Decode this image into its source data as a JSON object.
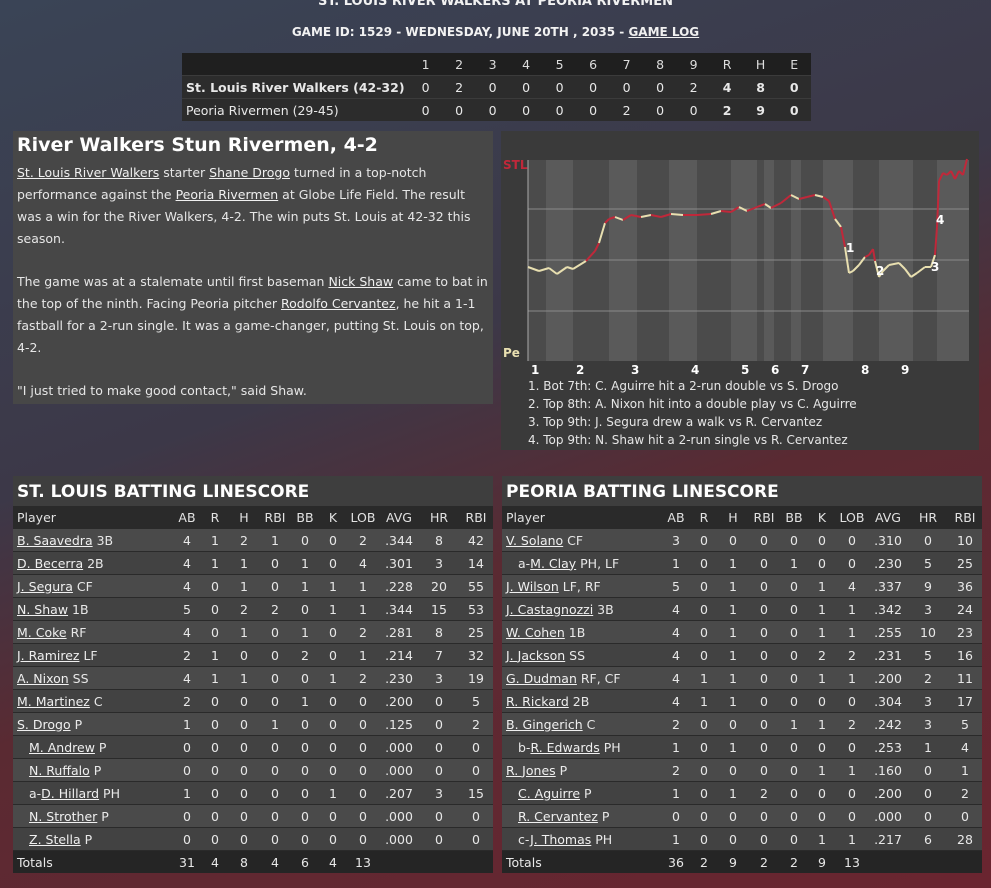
{
  "header": {
    "title": "ST. LOUIS RIVER WALKERS AT PEORIA RIVERMEN",
    "subtitle": "GAME ID: 1529 - WEDNESDAY, JUNE 20TH , 2035 - ",
    "game_log_link": "GAME LOG"
  },
  "linescore": {
    "headers": [
      "1",
      "2",
      "3",
      "4",
      "5",
      "6",
      "7",
      "8",
      "9",
      "R",
      "H",
      "E"
    ],
    "teams": [
      {
        "name": "St. Louis River Walkers (42-32)",
        "innings": [
          "0",
          "2",
          "0",
          "0",
          "0",
          "0",
          "0",
          "0",
          "2"
        ],
        "r": "4",
        "h": "8",
        "e": "0"
      },
      {
        "name": "Peoria Rivermen (29-45)",
        "innings": [
          "0",
          "0",
          "0",
          "0",
          "0",
          "0",
          "2",
          "0",
          "0"
        ],
        "r": "2",
        "h": "9",
        "e": "0"
      }
    ]
  },
  "story": {
    "headline": "River Walkers Stun Rivermen, 4-2",
    "p1": {
      "a_team": "St. Louis River Walkers",
      "a_txt1": " starter ",
      "a_player": "Shane Drogo",
      "a_txt2": " turned in a top-notch performance against the ",
      "a_opp": "Peoria Rivermen",
      "a_txt3": " at Globe Life Field. The result was a win for the River Walkers, 4-2. The win puts St. Louis at 42-32 this season."
    },
    "p2": {
      "txt1": "The game was at a stalemate until first baseman ",
      "player": "Nick Shaw",
      "txt2": " came to bat in the top of the ninth. Facing Peoria pitcher ",
      "pitcher": "Rodolfo Cervantez",
      "txt3": ", he hit a 1-1 fastball for a 2-run single. It was a game-changer, putting St. Louis on top, 4-2."
    },
    "p3": "\"I just tried to make good contact,\" said Shaw."
  },
  "win_probability": {
    "top_label": "STL",
    "bottom_label": "Pe",
    "inning_labels": [
      "1",
      "2",
      "3",
      "4",
      "5",
      "6",
      "7",
      "8",
      "9"
    ],
    "marker_labels": [
      "1",
      "2",
      "3",
      "4"
    ],
    "notes": [
      "1. Bot 7th: C. Aguirre hit a 2-run double vs S. Drogo",
      "2. Top 8th: A. Nixon hit into a double play vs C. Aguirre",
      "3. Top 9th: J. Segura drew a walk vs R. Cervantez",
      "4. Top 9th: N. Shaw hit a 2-run single vs R. Cervantez"
    ],
    "colors": {
      "away": "#c0283a",
      "home": "#e8dfb0"
    }
  },
  "batting_headers": [
    "Player",
    "AB",
    "R",
    "H",
    "RBI",
    "BB",
    "K",
    "LOB",
    "AVG",
    "HR",
    "RBI"
  ],
  "stl": {
    "title": "ST. LOUIS BATTING LINESCORE",
    "rows": [
      {
        "pre": "",
        "name": "B. Saavedra",
        "pos": " 3B",
        "sub": false,
        "stats": [
          "4",
          "1",
          "2",
          "1",
          "0",
          "0",
          "2",
          ".344",
          "8",
          "42"
        ]
      },
      {
        "pre": "",
        "name": "D. Becerra",
        "pos": " 2B",
        "sub": false,
        "stats": [
          "4",
          "1",
          "1",
          "0",
          "1",
          "0",
          "4",
          ".301",
          "3",
          "14"
        ]
      },
      {
        "pre": "",
        "name": "J. Segura",
        "pos": " CF",
        "sub": false,
        "stats": [
          "4",
          "0",
          "1",
          "0",
          "1",
          "1",
          "1",
          ".228",
          "20",
          "55"
        ]
      },
      {
        "pre": "",
        "name": "N. Shaw",
        "pos": " 1B",
        "sub": false,
        "stats": [
          "5",
          "0",
          "2",
          "2",
          "0",
          "1",
          "1",
          ".344",
          "15",
          "53"
        ]
      },
      {
        "pre": "",
        "name": "M. Coke",
        "pos": " RF",
        "sub": false,
        "stats": [
          "4",
          "0",
          "1",
          "0",
          "1",
          "0",
          "2",
          ".281",
          "8",
          "25"
        ]
      },
      {
        "pre": "",
        "name": "J. Ramirez",
        "pos": " LF",
        "sub": false,
        "stats": [
          "2",
          "1",
          "0",
          "0",
          "2",
          "0",
          "1",
          ".214",
          "7",
          "32"
        ]
      },
      {
        "pre": "",
        "name": "A. Nixon",
        "pos": " SS",
        "sub": false,
        "stats": [
          "4",
          "1",
          "1",
          "0",
          "0",
          "1",
          "2",
          ".230",
          "3",
          "19"
        ]
      },
      {
        "pre": "",
        "name": "M. Martinez",
        "pos": " C",
        "sub": false,
        "stats": [
          "2",
          "0",
          "0",
          "0",
          "1",
          "0",
          "0",
          ".200",
          "0",
          "5"
        ]
      },
      {
        "pre": "",
        "name": "S. Drogo",
        "pos": " P",
        "sub": false,
        "stats": [
          "1",
          "0",
          "0",
          "1",
          "0",
          "0",
          "0",
          ".125",
          "0",
          "2"
        ]
      },
      {
        "pre": "",
        "name": "M. Andrew",
        "pos": " P",
        "sub": true,
        "stats": [
          "0",
          "0",
          "0",
          "0",
          "0",
          "0",
          "0",
          ".000",
          "0",
          "0"
        ]
      },
      {
        "pre": "",
        "name": "N. Ruffalo",
        "pos": " P",
        "sub": true,
        "stats": [
          "0",
          "0",
          "0",
          "0",
          "0",
          "0",
          "0",
          ".000",
          "0",
          "0"
        ]
      },
      {
        "pre": "a-",
        "name": "D. Hillard",
        "pos": " PH",
        "sub": true,
        "stats": [
          "1",
          "0",
          "0",
          "0",
          "0",
          "1",
          "0",
          ".207",
          "3",
          "15"
        ]
      },
      {
        "pre": "",
        "name": "N. Strother",
        "pos": " P",
        "sub": true,
        "stats": [
          "0",
          "0",
          "0",
          "0",
          "0",
          "0",
          "0",
          ".000",
          "0",
          "0"
        ]
      },
      {
        "pre": "",
        "name": "Z. Stella",
        "pos": " P",
        "sub": true,
        "stats": [
          "0",
          "0",
          "0",
          "0",
          "0",
          "0",
          "0",
          ".000",
          "0",
          "0"
        ]
      }
    ],
    "totals": {
      "label": "Totals",
      "stats": [
        "31",
        "4",
        "8",
        "4",
        "6",
        "4",
        "13",
        "",
        "",
        ""
      ]
    }
  },
  "peo": {
    "title": "PEORIA BATTING LINESCORE",
    "rows": [
      {
        "pre": "",
        "name": "V. Solano",
        "pos": " CF",
        "sub": false,
        "stats": [
          "3",
          "0",
          "0",
          "0",
          "0",
          "0",
          "0",
          ".310",
          "0",
          "10"
        ]
      },
      {
        "pre": "a-",
        "name": "M. Clay",
        "pos": " PH, LF",
        "sub": true,
        "stats": [
          "1",
          "0",
          "1",
          "0",
          "1",
          "0",
          "0",
          ".230",
          "5",
          "25"
        ]
      },
      {
        "pre": "",
        "name": "J. Wilson",
        "pos": " LF, RF",
        "sub": false,
        "stats": [
          "5",
          "0",
          "1",
          "0",
          "0",
          "1",
          "4",
          ".337",
          "9",
          "36"
        ]
      },
      {
        "pre": "",
        "name": "J. Castagnozzi",
        "pos": " 3B",
        "sub": false,
        "stats": [
          "4",
          "0",
          "1",
          "0",
          "0",
          "1",
          "1",
          ".342",
          "3",
          "24"
        ]
      },
      {
        "pre": "",
        "name": "W. Cohen",
        "pos": " 1B",
        "sub": false,
        "stats": [
          "4",
          "0",
          "1",
          "0",
          "0",
          "1",
          "1",
          ".255",
          "10",
          "23"
        ]
      },
      {
        "pre": "",
        "name": "J. Jackson",
        "pos": " SS",
        "sub": false,
        "stats": [
          "4",
          "0",
          "1",
          "0",
          "0",
          "2",
          "2",
          ".231",
          "5",
          "16"
        ]
      },
      {
        "pre": "",
        "name": "G. Dudman",
        "pos": " RF, CF",
        "sub": false,
        "stats": [
          "4",
          "1",
          "1",
          "0",
          "0",
          "1",
          "1",
          ".200",
          "2",
          "11"
        ]
      },
      {
        "pre": "",
        "name": "R. Rickard",
        "pos": " 2B",
        "sub": false,
        "stats": [
          "4",
          "1",
          "1",
          "0",
          "0",
          "0",
          "0",
          ".304",
          "3",
          "17"
        ]
      },
      {
        "pre": "",
        "name": "B. Gingerich",
        "pos": " C",
        "sub": false,
        "stats": [
          "2",
          "0",
          "0",
          "0",
          "1",
          "1",
          "2",
          ".242",
          "3",
          "5"
        ]
      },
      {
        "pre": "b-",
        "name": "R. Edwards",
        "pos": " PH",
        "sub": true,
        "stats": [
          "1",
          "0",
          "1",
          "0",
          "0",
          "0",
          "0",
          ".253",
          "1",
          "4"
        ]
      },
      {
        "pre": "",
        "name": "R. Jones",
        "pos": " P",
        "sub": false,
        "stats": [
          "2",
          "0",
          "0",
          "0",
          "0",
          "1",
          "1",
          ".160",
          "0",
          "1"
        ]
      },
      {
        "pre": "",
        "name": "C. Aguirre",
        "pos": " P",
        "sub": true,
        "stats": [
          "1",
          "0",
          "1",
          "2",
          "0",
          "0",
          "0",
          ".200",
          "0",
          "2"
        ]
      },
      {
        "pre": "",
        "name": "R. Cervantez",
        "pos": " P",
        "sub": true,
        "stats": [
          "0",
          "0",
          "0",
          "0",
          "0",
          "0",
          "0",
          ".000",
          "0",
          "0"
        ]
      },
      {
        "pre": "c-",
        "name": "J. Thomas",
        "pos": " PH",
        "sub": true,
        "stats": [
          "1",
          "0",
          "0",
          "0",
          "0",
          "1",
          "1",
          ".217",
          "6",
          "28"
        ]
      }
    ],
    "totals": {
      "label": "Totals",
      "stats": [
        "36",
        "2",
        "9",
        "2",
        "2",
        "9",
        "13",
        "",
        "",
        ""
      ]
    }
  }
}
